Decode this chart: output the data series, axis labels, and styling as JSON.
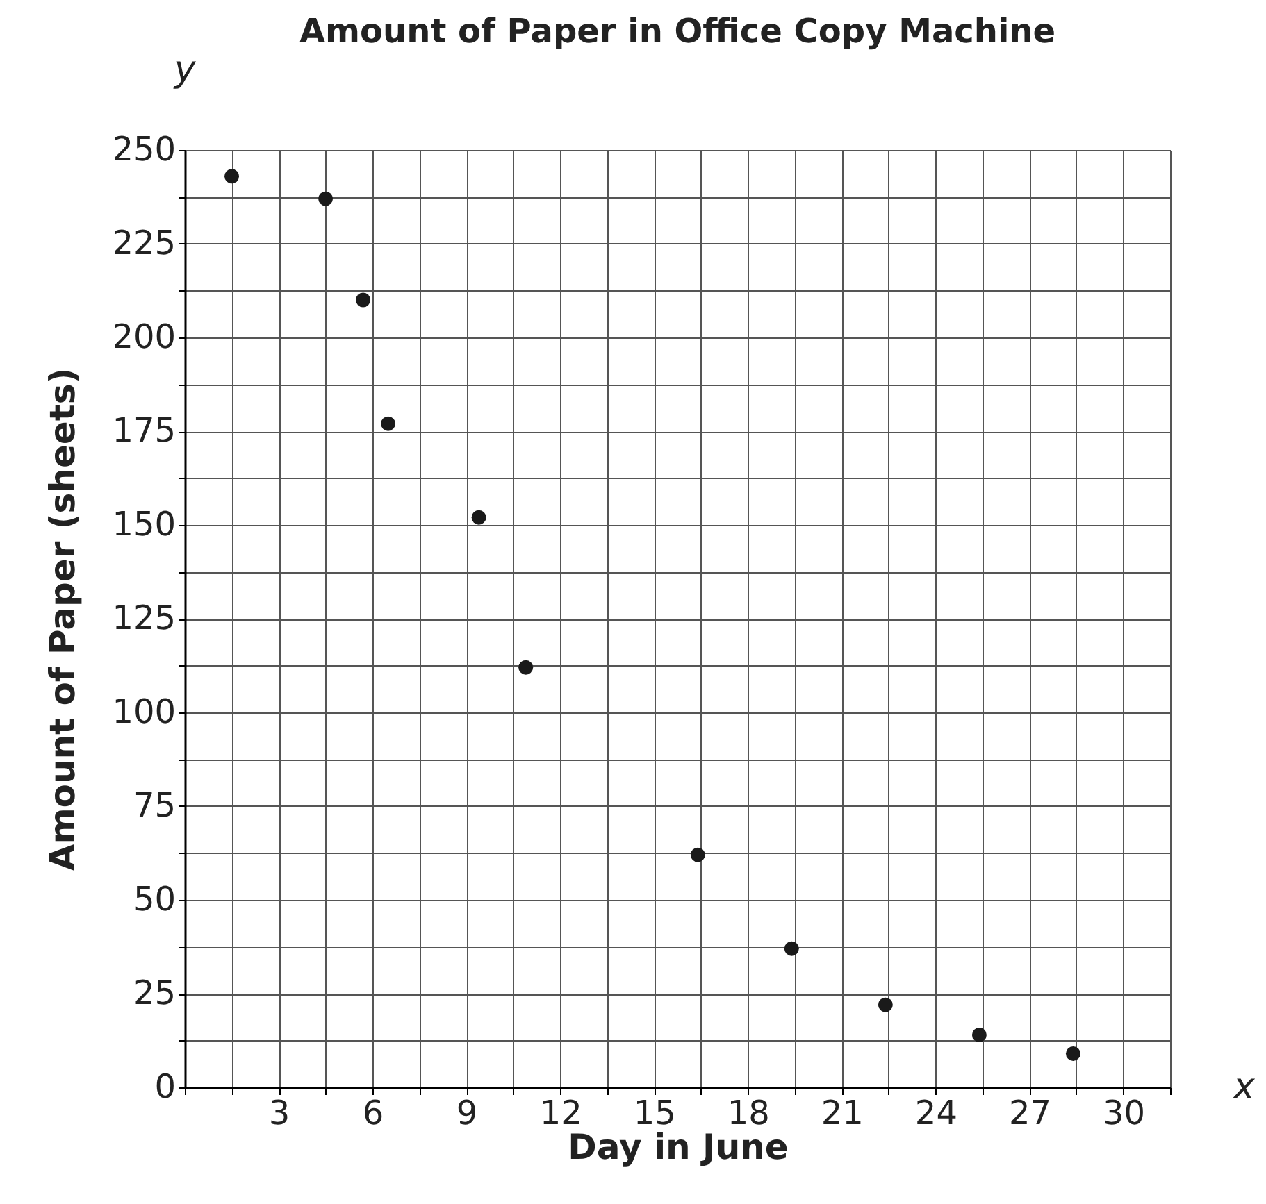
{
  "chart_data": {
    "type": "scatter",
    "title": "Amount of Paper in Office Copy Machine",
    "xlabel": "Day in June",
    "ylabel": "Amount of Paper (sheets)",
    "annotations": [
      "y",
      "x"
    ],
    "x": [
      1.5,
      4.5,
      5.7,
      6.5,
      9.4,
      10.9,
      16.4,
      19.4,
      22.4,
      25.4,
      28.4
    ],
    "series": [
      {
        "color": "#1a1a1a",
        "values": [
          243,
          237,
          210,
          177,
          152,
          112,
          62,
          37,
          22,
          14,
          9
        ]
      }
    ],
    "xlim": [
      0,
      31.5
    ],
    "ylim": [
      0,
      250
    ],
    "xticks": [
      {
        "value": 0,
        "label": null
      },
      {
        "value": 1.5,
        "label": null
      },
      3,
      {
        "value": 4.5,
        "label": null
      },
      6,
      {
        "value": 7.5,
        "label": null
      },
      9,
      {
        "value": 10.5,
        "label": null
      },
      12,
      {
        "value": 13.5,
        "label": null
      },
      15,
      {
        "value": 16.5,
        "label": null
      },
      18,
      {
        "value": 19.5,
        "label": null
      },
      21,
      {
        "value": 22.5,
        "label": null
      },
      24,
      {
        "value": 25.5,
        "label": null
      },
      27,
      {
        "value": 28.5,
        "label": null
      },
      30,
      {
        "value": 31.5,
        "label": null
      }
    ],
    "yticks": [
      0,
      {
        "value": 12.5,
        "label": null
      },
      25,
      {
        "value": 37.5,
        "label": null
      },
      50,
      {
        "value": 62.5,
        "label": null
      },
      75,
      {
        "value": 87.5,
        "label": null
      },
      100,
      {
        "value": 112.5,
        "label": null
      },
      125,
      {
        "value": 137.5,
        "label": null
      },
      150,
      {
        "value": 162.5,
        "label": null
      },
      175,
      {
        "value": 187.5,
        "label": null
      },
      200,
      {
        "value": 212.5,
        "label": null
      },
      225,
      {
        "value": 237.5,
        "label": null
      },
      250
    ],
    "grid": true,
    "marker": "circle"
  }
}
